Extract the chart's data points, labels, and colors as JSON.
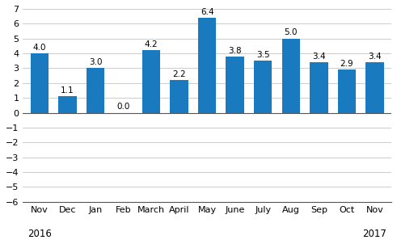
{
  "categories": [
    "Nov",
    "Dec",
    "Jan",
    "Feb",
    "March",
    "April",
    "May",
    "June",
    "July",
    "Aug",
    "Sep",
    "Oct",
    "Nov"
  ],
  "values": [
    4.0,
    1.1,
    3.0,
    0.0,
    4.2,
    2.2,
    6.4,
    3.8,
    3.5,
    5.0,
    3.4,
    2.9,
    3.4
  ],
  "bar_color": "#1a7abf",
  "year_labels": [
    [
      "2016",
      0
    ],
    [
      "2017",
      12
    ]
  ],
  "ylim": [
    -6,
    7
  ],
  "yticks": [
    -6,
    -5,
    -4,
    -3,
    -2,
    -1,
    0,
    1,
    2,
    3,
    4,
    5,
    6,
    7
  ],
  "label_fontsize": 7.5,
  "tick_fontsize": 8.0,
  "year_fontsize": 8.5,
  "value_fontsize": 7.5,
  "bar_width": 0.65,
  "background_color": "#ffffff",
  "grid_color": "#cccccc"
}
